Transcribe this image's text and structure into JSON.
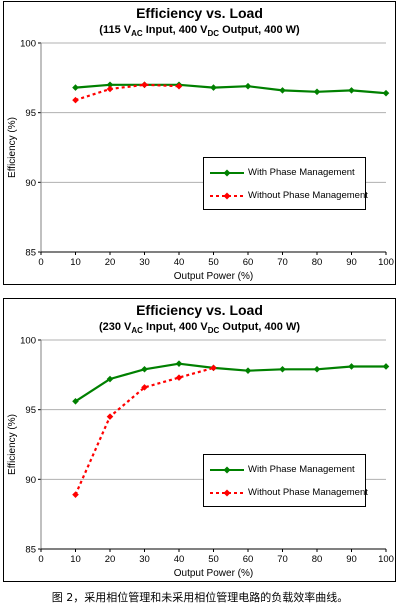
{
  "chart_data": [
    {
      "type": "line",
      "title": "Efficiency vs. Load",
      "subtitle": {
        "prefix": "(115 V",
        "sub1": "AC",
        "mid": " Input, 400 V",
        "sub2": "DC",
        "suffix": " Output, 400 W)"
      },
      "xlabel": "Output Power (%)",
      "ylabel": "Efficiency (%)",
      "xlim": [
        0,
        100
      ],
      "ylim": [
        85,
        100
      ],
      "xticks": [
        0,
        10,
        20,
        30,
        40,
        50,
        60,
        70,
        80,
        90,
        100
      ],
      "yticks": [
        85,
        90,
        95,
        100
      ],
      "grid": "horizontal",
      "legend": "right-inside",
      "series": [
        {
          "name": "With Phase Management",
          "color": "#008000",
          "style": "solid",
          "marker": "diamond",
          "x": [
            10,
            20,
            30,
            40,
            50,
            60,
            70,
            80,
            90,
            100
          ],
          "y": [
            96.8,
            97.0,
            97.0,
            97.0,
            96.8,
            96.9,
            96.6,
            96.5,
            96.6,
            96.4
          ]
        },
        {
          "name": "Without Phase Management",
          "color": "#ff0000",
          "style": "dashed",
          "marker": "diamond",
          "x": [
            10,
            20,
            30,
            40
          ],
          "y": [
            95.9,
            96.7,
            97.0,
            96.9
          ]
        }
      ]
    },
    {
      "type": "line",
      "title": "Efficiency vs. Load",
      "subtitle": {
        "prefix": "(230 V",
        "sub1": "AC",
        "mid": " Input, 400 V",
        "sub2": "DC",
        "suffix": " Output, 400 W)"
      },
      "xlabel": "Output Power (%)",
      "ylabel": "Efficiency (%)",
      "xlim": [
        0,
        100
      ],
      "ylim": [
        85,
        100
      ],
      "xticks": [
        0,
        10,
        20,
        30,
        40,
        50,
        60,
        70,
        80,
        90,
        100
      ],
      "yticks": [
        85,
        90,
        95,
        100
      ],
      "grid": "horizontal",
      "legend": "right-inside",
      "series": [
        {
          "name": "With Phase Management",
          "color": "#008000",
          "style": "solid",
          "marker": "diamond",
          "x": [
            10,
            20,
            30,
            40,
            50,
            60,
            70,
            80,
            90,
            100
          ],
          "y": [
            95.6,
            97.2,
            97.9,
            98.3,
            98.0,
            97.8,
            97.9,
            97.9,
            98.1,
            98.1
          ]
        },
        {
          "name": "Without Phase Management",
          "color": "#ff0000",
          "style": "dashed",
          "marker": "diamond",
          "x": [
            10,
            20,
            30,
            40,
            50
          ],
          "y": [
            88.9,
            94.5,
            96.6,
            97.3,
            98.0
          ]
        }
      ]
    }
  ],
  "caption": "图 2，采用相位管理和未采用相位管理电路的负载效率曲线。"
}
